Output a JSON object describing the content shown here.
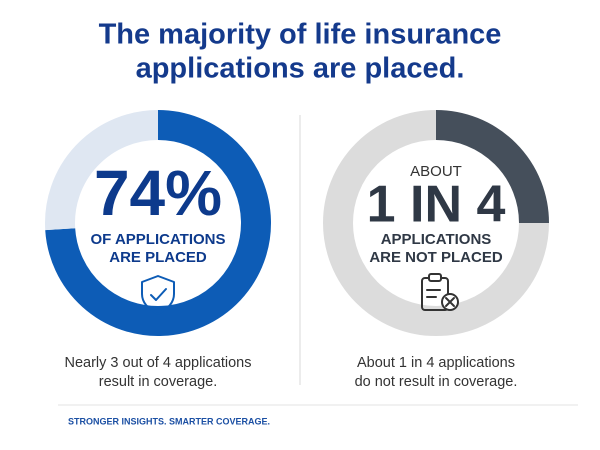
{
  "title": [
    "The majority of life insurance",
    "applications are placed."
  ],
  "chart_data": [
    {
      "type": "donut",
      "values": [
        74,
        26
      ],
      "value_labels": [
        "74%",
        null
      ],
      "colors": [
        "#0d5cb6",
        "#dfe7f2"
      ],
      "text_color": "#0d3a8c",
      "prefix": null,
      "label_lines": [
        "OF APPLICATIONS",
        "ARE PLACED"
      ],
      "caption_lines": [
        "Nearly 3 out of 4 applications",
        "result in coverage."
      ]
    },
    {
      "type": "donut",
      "values": [
        25,
        75
      ],
      "value_labels": [
        "1 IN 4",
        null
      ],
      "colors": [
        "#454f5b",
        "#dcdcdc"
      ],
      "text_color": "#2f3845",
      "prefix": "ABOUT",
      "label_lines": [
        "APPLICATIONS",
        "ARE NOT PLACED"
      ],
      "caption_lines": [
        "About 1 in 4 applications",
        "do not result in coverage."
      ]
    }
  ],
  "footer": "STRONGER INSIGHTS. SMARTER COVERAGE."
}
